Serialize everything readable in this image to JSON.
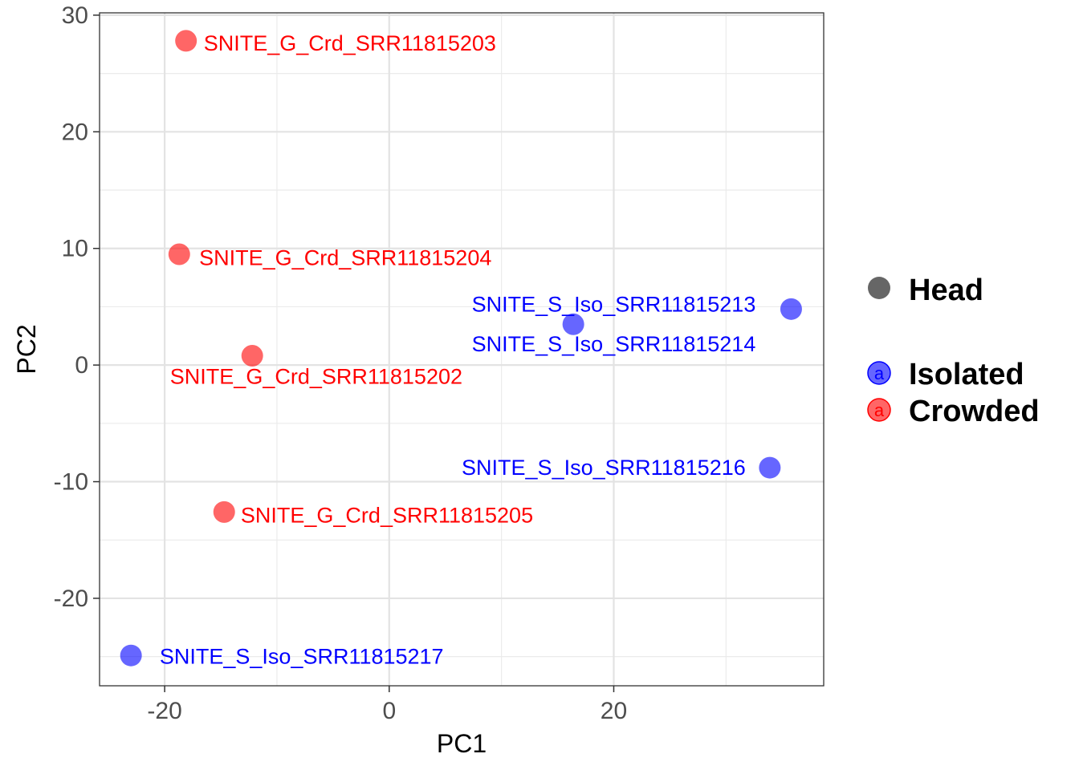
{
  "chart_data": {
    "type": "scatter",
    "title": "",
    "xlabel": "PC1",
    "ylabel": "PC2",
    "xlim": [
      -25.8,
      38.7
    ],
    "ylim": [
      -27.5,
      30.2
    ],
    "x_ticks": [
      -20,
      0,
      20
    ],
    "y_ticks": [
      -20,
      -10,
      0,
      10,
      20,
      30
    ],
    "grid": true,
    "legend_position": "right",
    "legend": {
      "shape_entries": [
        {
          "label": "Head",
          "color": "#666666"
        }
      ],
      "color_entries": [
        {
          "label": "Isolated",
          "color": "#0000ff",
          "key_glyph": "a"
        },
        {
          "label": "Crowded",
          "color": "#ff0000",
          "key_glyph": "a"
        }
      ]
    },
    "series": [
      {
        "name": "Isolated",
        "color": "#0000ff",
        "points": [
          {
            "x": 35.8,
            "y": 4.8,
            "label": "SNITE_S_Iso_SRR11815213",
            "label_x": 20.0,
            "label_y": 5.2
          },
          {
            "x": 16.4,
            "y": 3.5,
            "label": "SNITE_S_Iso_SRR11815214",
            "label_x": 20.0,
            "label_y": 1.8
          },
          {
            "x": 33.9,
            "y": -8.8,
            "label": "SNITE_S_Iso_SRR11815216",
            "label_x": 19.1,
            "label_y": -8.8
          },
          {
            "x": -23.0,
            "y": -24.9,
            "label": "SNITE_S_Iso_SRR11815217",
            "label_x": -7.8,
            "label_y": -25.0
          }
        ]
      },
      {
        "name": "Crowded",
        "color": "#ff0000",
        "points": [
          {
            "x": -18.1,
            "y": 27.8,
            "label": "SNITE_G_Crd_SRR11815203",
            "label_x": -3.5,
            "label_y": 27.6
          },
          {
            "x": -18.7,
            "y": 9.5,
            "label": "SNITE_G_Crd_SRR11815204",
            "label_x": -3.9,
            "label_y": 9.2
          },
          {
            "x": -12.2,
            "y": 0.8,
            "label": "SNITE_G_Crd_SRR11815202",
            "label_x": -6.5,
            "label_y": -1.0
          },
          {
            "x": -14.7,
            "y": -12.6,
            "label": "SNITE_G_Crd_SRR11815205",
            "label_x": -0.2,
            "label_y": -12.9
          }
        ]
      }
    ]
  }
}
